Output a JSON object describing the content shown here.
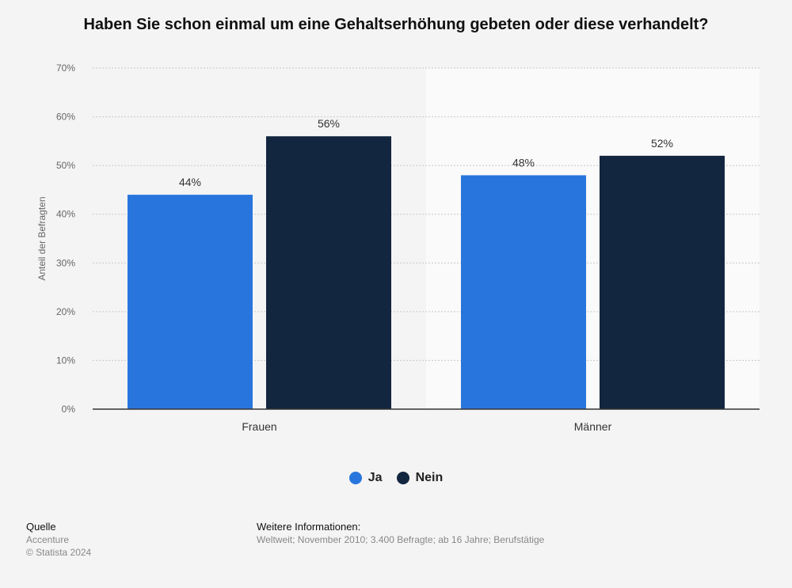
{
  "title": "Haben Sie schon einmal um eine Gehaltserhöhung gebeten oder diese verhandelt?",
  "chart_data": {
    "type": "bar",
    "categories": [
      "Frauen",
      "Männer"
    ],
    "series": [
      {
        "name": "Ja",
        "values": [
          44,
          48
        ],
        "color": "#2876dd"
      },
      {
        "name": "Nein",
        "values": [
          56,
          52
        ],
        "color": "#12263f"
      }
    ],
    "data_labels": [
      [
        "44%",
        "48%"
      ],
      [
        "56%",
        "52%"
      ]
    ],
    "ylabel": "Anteil der Befragten",
    "ylim": [
      0,
      70
    ],
    "yticks": [
      0,
      10,
      20,
      30,
      40,
      50,
      60,
      70
    ],
    "ytick_labels": [
      "0%",
      "10%",
      "20%",
      "30%",
      "40%",
      "50%",
      "60%",
      "70%"
    ],
    "grid": true,
    "legend_position": "bottom-center"
  },
  "legend": {
    "items": [
      {
        "label": "Ja",
        "color": "#2876dd"
      },
      {
        "label": "Nein",
        "color": "#12263f"
      }
    ]
  },
  "footer": {
    "source_heading": "Quelle",
    "source": "Accenture",
    "copyright": "© Statista 2024",
    "info_heading": "Weitere Informationen:",
    "info": "Weltweit; November 2010; 3.400 Befragte; ab 16 Jahre; Berufstätige"
  }
}
